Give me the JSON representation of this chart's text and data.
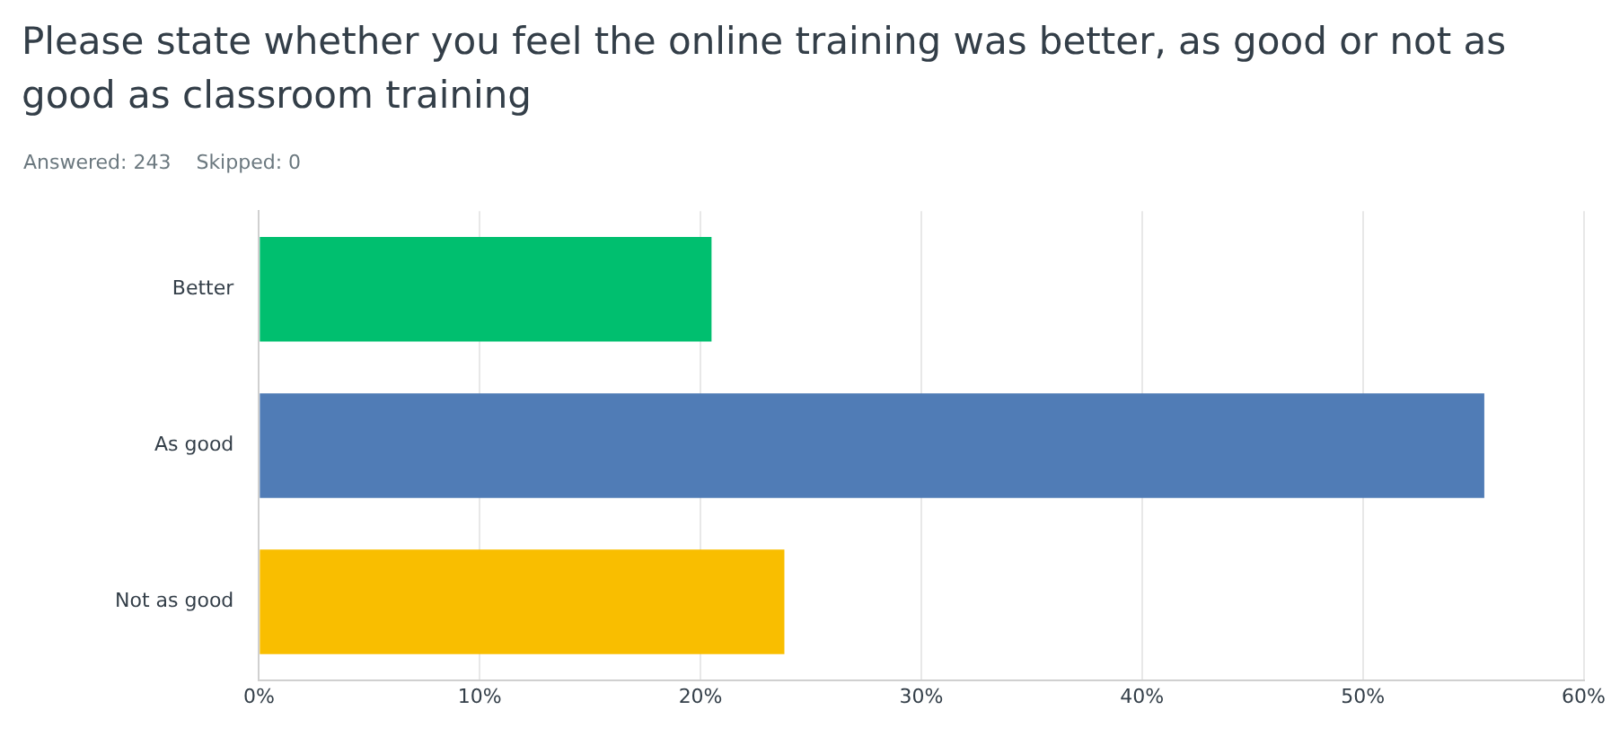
{
  "chart_data": {
    "type": "bar",
    "orientation": "horizontal",
    "title": "Please state whether you feel the online training was better, as good or not as good as classroom training",
    "subtitle": "Answered: 243    Skipped: 0",
    "categories": [
      "Better",
      "As good",
      "Not as good"
    ],
    "values": [
      20.5,
      55.5,
      23.8
    ],
    "colors": [
      "#00bf6f",
      "#507cb6",
      "#f9be00"
    ],
    "xlim": [
      0,
      60
    ],
    "xticks": [
      {
        "value": 0,
        "label": "0%"
      },
      {
        "value": 10,
        "label": "10%"
      },
      {
        "value": 20,
        "label": "20%"
      },
      {
        "value": 30,
        "label": "30%"
      },
      {
        "value": 40,
        "label": "40%"
      },
      {
        "value": 50,
        "label": "50%"
      },
      {
        "value": 60,
        "label": "60%"
      }
    ],
    "grid": "x"
  }
}
